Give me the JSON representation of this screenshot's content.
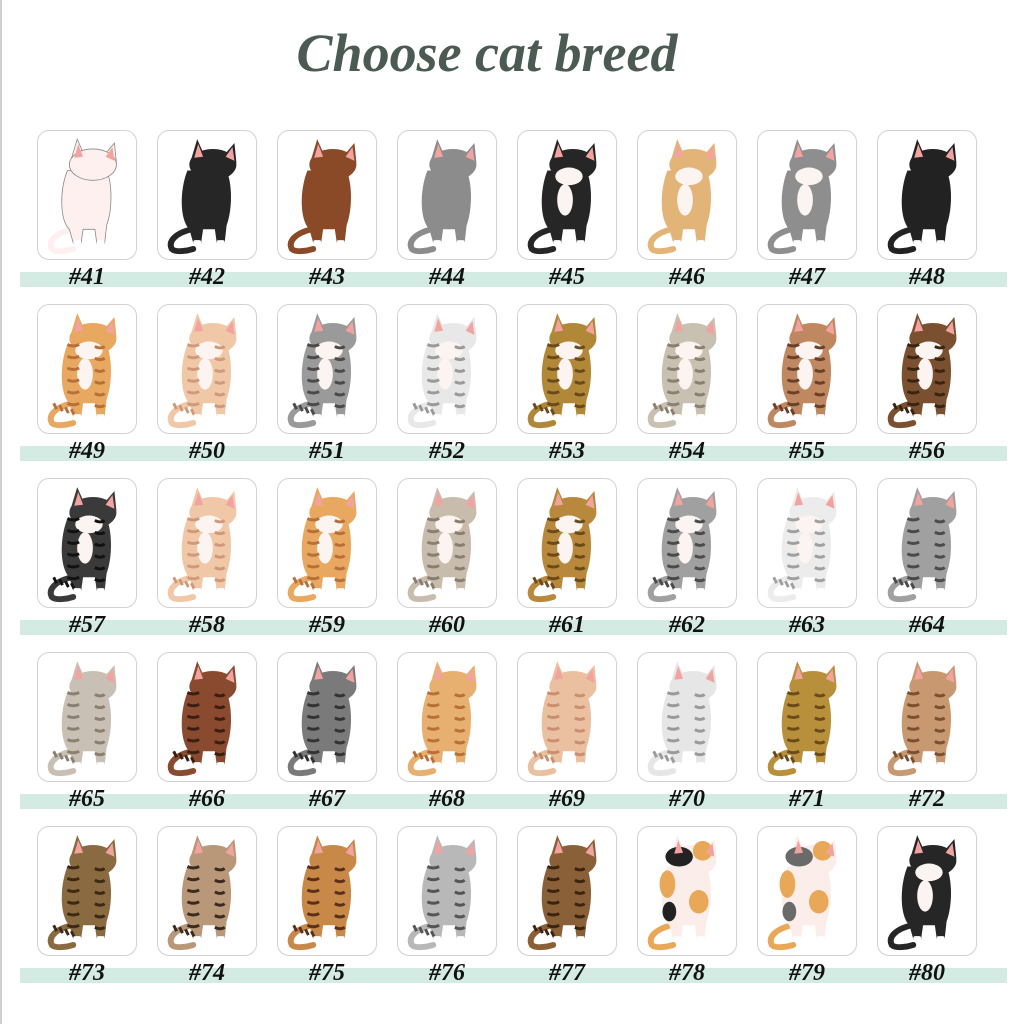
{
  "title": "Choose cat breed",
  "colors": {
    "band": "#d3ebe2",
    "title": "#4b5a52",
    "ear_inner": "#f2a3a0"
  },
  "cats": [
    {
      "label": "#41",
      "body": "#fdf0ee",
      "stripe": null,
      "white": false,
      "outline": "#888"
    },
    {
      "label": "#42",
      "body": "#262626",
      "stripe": null,
      "white": false
    },
    {
      "label": "#43",
      "body": "#8a4a28",
      "stripe": null,
      "white": false
    },
    {
      "label": "#44",
      "body": "#8c8c8c",
      "stripe": null,
      "white": false
    },
    {
      "label": "#45",
      "body": "#262626",
      "stripe": null,
      "white": true
    },
    {
      "label": "#46",
      "body": "#e2b478",
      "stripe": null,
      "white": true
    },
    {
      "label": "#47",
      "body": "#8e8e8e",
      "stripe": null,
      "white": true
    },
    {
      "label": "#48",
      "body": "#222222",
      "stripe": null,
      "white": false
    },
    {
      "label": "#49",
      "body": "#e8a860",
      "stripe": "#b8703a",
      "white": true
    },
    {
      "label": "#50",
      "body": "#f0c8a8",
      "stripe": "#d09a7a",
      "white": true
    },
    {
      "label": "#51",
      "body": "#9a9a9a",
      "stripe": "#4a4a4a",
      "white": true
    },
    {
      "label": "#52",
      "body": "#e8e8e8",
      "stripe": "#9a9a9a",
      "white": true
    },
    {
      "label": "#53",
      "body": "#b08838",
      "stripe": "#6a4a1a",
      "white": true
    },
    {
      "label": "#54",
      "body": "#c8c0b0",
      "stripe": "#8a8070",
      "white": true
    },
    {
      "label": "#55",
      "body": "#c08860",
      "stripe": "#6a4028",
      "white": true
    },
    {
      "label": "#56",
      "body": "#7a5030",
      "stripe": "#3a2410",
      "white": true
    },
    {
      "label": "#57",
      "body": "#3a3a3a",
      "stripe": "#111111",
      "white": true
    },
    {
      "label": "#58",
      "body": "#f0c8a8",
      "stripe": "#d09a7a",
      "white": true
    },
    {
      "label": "#59",
      "body": "#e8a860",
      "stripe": "#b8703a",
      "white": true
    },
    {
      "label": "#60",
      "body": "#c8bcac",
      "stripe": "#8a7e70",
      "white": true
    },
    {
      "label": "#61",
      "body": "#b8883c",
      "stripe": "#6a4a1a",
      "white": true
    },
    {
      "label": "#62",
      "body": "#a0a0a0",
      "stripe": "#4a4a4a",
      "white": true
    },
    {
      "label": "#63",
      "body": "#ececec",
      "stripe": "#a0a0a0",
      "white": true
    },
    {
      "label": "#64",
      "body": "#a0a0a0",
      "stripe": "#4a4a4a",
      "white": false
    },
    {
      "label": "#65",
      "body": "#c8c0b4",
      "stripe": "#8a8070",
      "white": false
    },
    {
      "label": "#66",
      "body": "#8a4a30",
      "stripe": "#3a1e10",
      "white": false
    },
    {
      "label": "#67",
      "body": "#7a7a7a",
      "stripe": "#333333",
      "white": false
    },
    {
      "label": "#68",
      "body": "#e8b070",
      "stripe": "#b8703a",
      "white": false
    },
    {
      "label": "#69",
      "body": "#eac0a0",
      "stripe": "#c89070",
      "white": false
    },
    {
      "label": "#70",
      "body": "#e6e6e6",
      "stripe": "#9a9a9a",
      "white": false
    },
    {
      "label": "#71",
      "body": "#b8903c",
      "stripe": "#6a4a1a",
      "white": false
    },
    {
      "label": "#72",
      "body": "#c89870",
      "stripe": "#7a5030",
      "white": false
    },
    {
      "label": "#73",
      "body": "#8a6a40",
      "stripe": "#3a2a14",
      "white": false
    },
    {
      "label": "#74",
      "body": "#b89878",
      "stripe": "#3a2a20",
      "white": false
    },
    {
      "label": "#75",
      "body": "#c88848",
      "stripe": "#5a3018",
      "white": false
    },
    {
      "label": "#76",
      "body": "#b8b8b8",
      "stripe": "#555555",
      "white": false
    },
    {
      "label": "#77",
      "body": "#8a6038",
      "stripe": "#3a2410",
      "white": false
    },
    {
      "label": "#78",
      "body": "#fbeeea",
      "stripe": null,
      "white": false,
      "calico": [
        "#222222",
        "#e8a858"
      ]
    },
    {
      "label": "#79",
      "body": "#fbeeea",
      "stripe": null,
      "white": false,
      "calico": [
        "#6a6a6a",
        "#e8a858"
      ]
    },
    {
      "label": "#80",
      "body": "#262626",
      "stripe": null,
      "white": true
    }
  ]
}
